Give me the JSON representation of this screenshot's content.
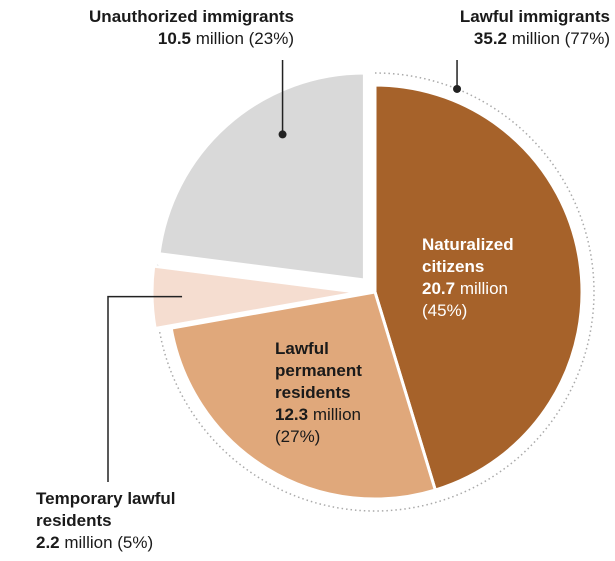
{
  "chart_data": {
    "type": "pie",
    "title": "",
    "slices": [
      {
        "name": "Naturalized citizens",
        "label_lines": [
          "Naturalized",
          "citizens"
        ],
        "value": 20.7,
        "value_text": "20.7",
        "unit": " million",
        "pct_text": "(45%)",
        "color": "#a6622a"
      },
      {
        "name": "Lawful permanent residents",
        "label_lines": [
          "Lawful",
          "permanent",
          "residents"
        ],
        "value": 12.3,
        "value_text": "12.3",
        "unit": " million",
        "pct_text": "(27%)",
        "color": "#e0a87b"
      },
      {
        "name": "Temporary lawful residents",
        "label_lines": [
          "Temporary lawful",
          "residents"
        ],
        "value": 2.2,
        "value_text": "2.2",
        "unit": " million (5%)",
        "pct_text": "",
        "color": "#f5ddd0"
      },
      {
        "name": "Unauthorized immigrants",
        "label_lines": [
          "Unauthorized immigrants"
        ],
        "value": 10.5,
        "value_text": "10.5",
        "unit": " million (23%)",
        "pct_text": "",
        "color": "#d9d9d9"
      }
    ],
    "groups": [
      {
        "name": "Lawful immigrants",
        "value_text": "35.2",
        "unit": " million (77%)"
      }
    ]
  },
  "colors": {
    "leader": "#222222",
    "dotted_arc": "#aaaaaa"
  }
}
